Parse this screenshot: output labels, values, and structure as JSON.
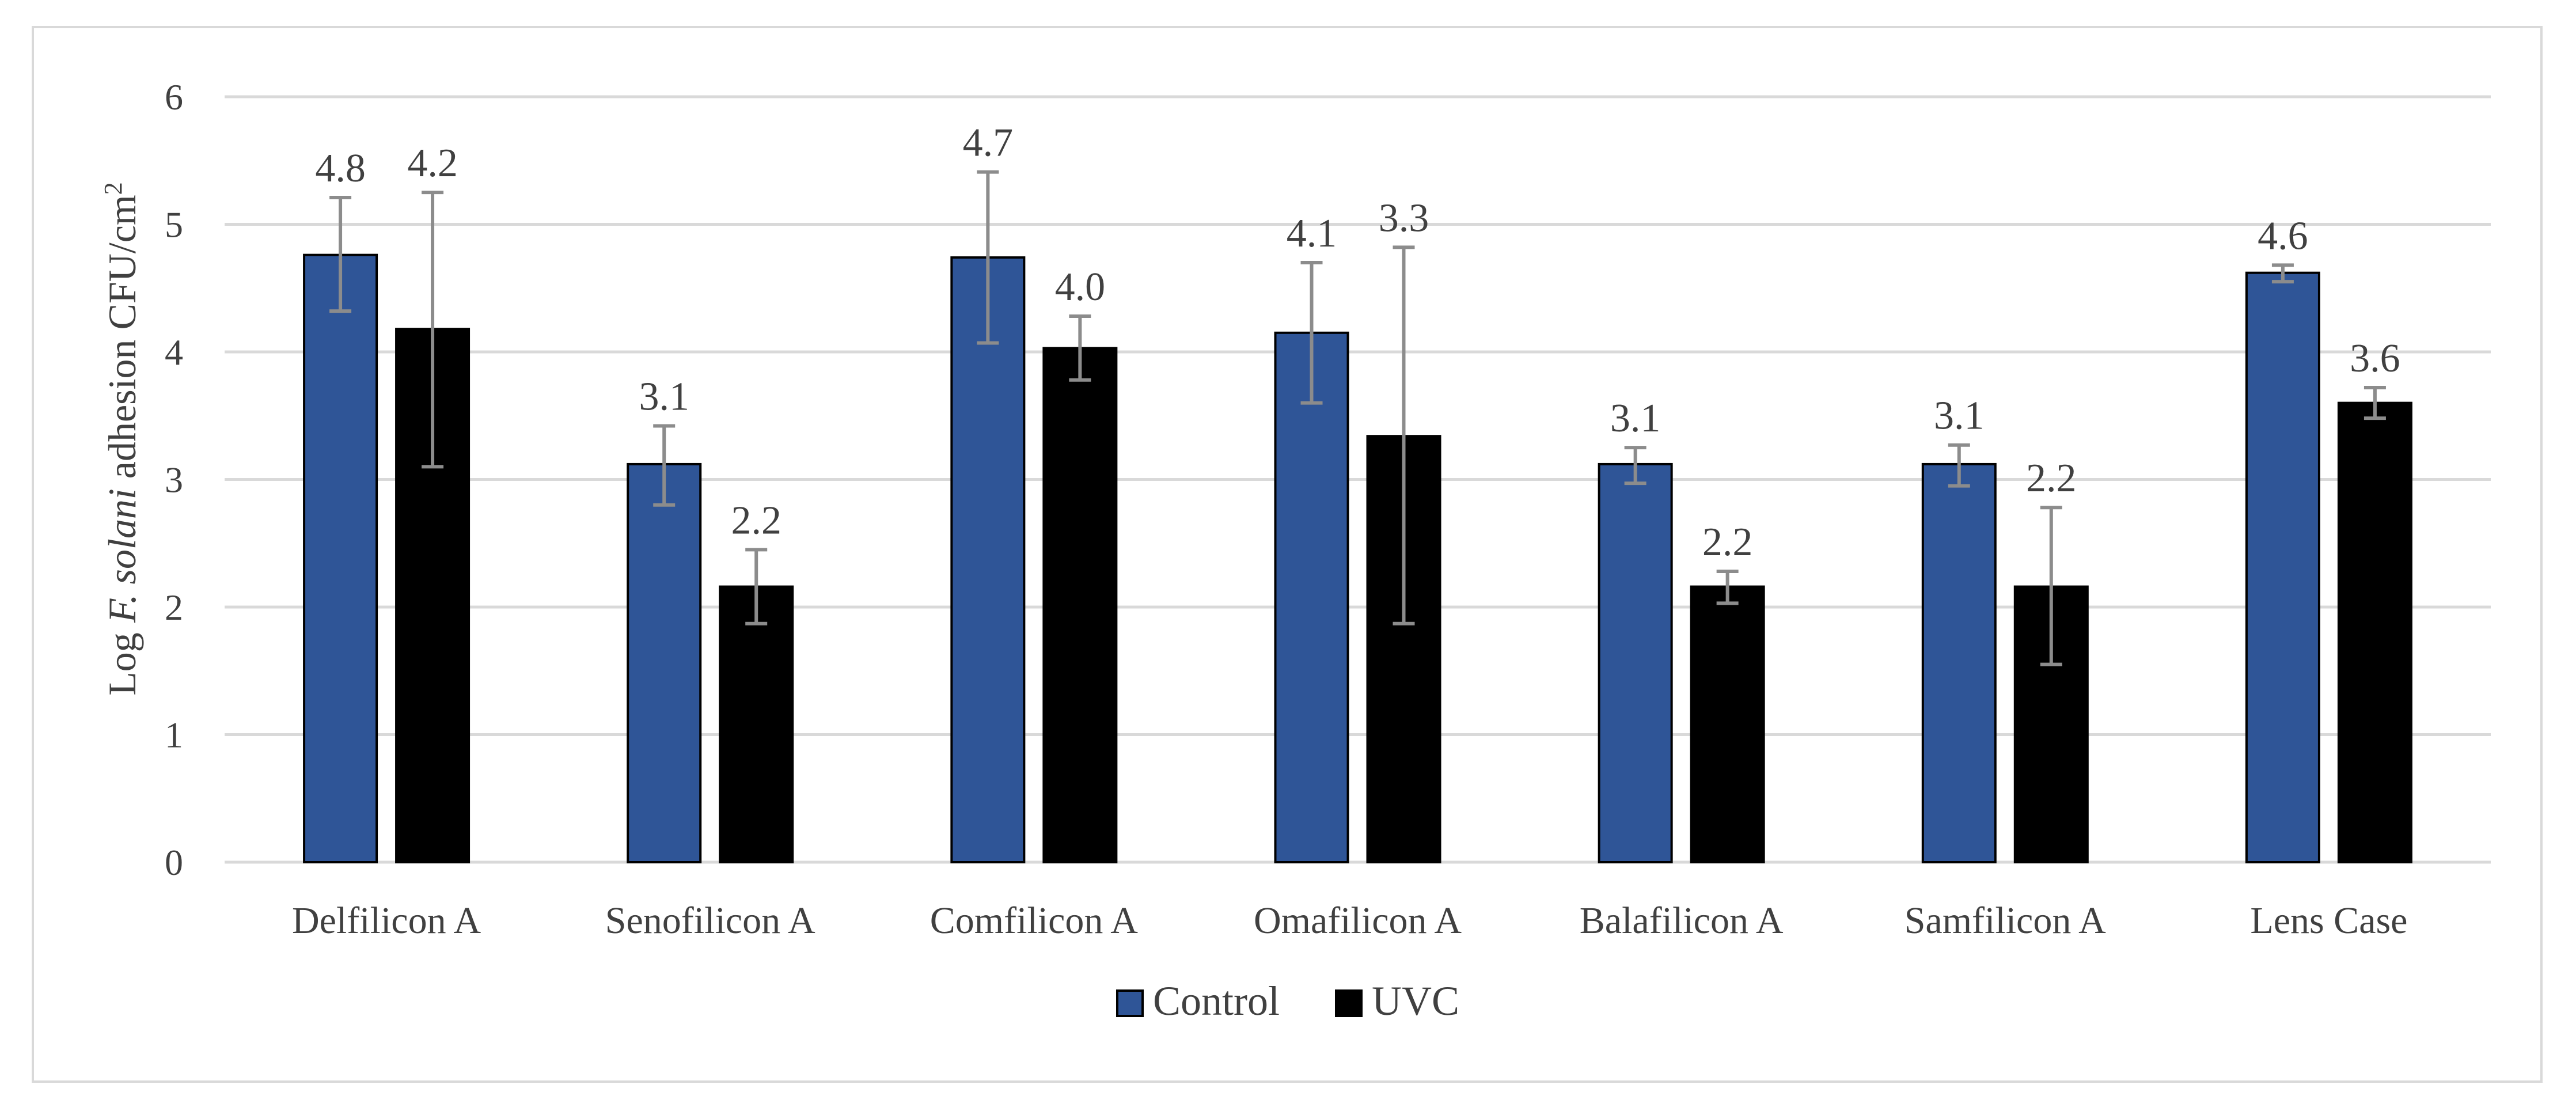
{
  "chart_data": {
    "type": "bar",
    "title": "",
    "xlabel": "",
    "ylabel": {
      "prefix": "Log ",
      "species": "F. solani",
      "suffix": " adhesion CFU/cm",
      "superscript": "2"
    },
    "ylim": [
      0,
      6
    ],
    "yticks": [
      0,
      1,
      2,
      3,
      4,
      5,
      6
    ],
    "grid": true,
    "legend_position": "bottom",
    "categories": [
      "Delfilicon A",
      "Senofilicon A",
      "Comfilicon A",
      "Omafilicon A",
      "Balafilicon A",
      "Samfilicon A",
      "Lens Case"
    ],
    "series": [
      {
        "name": "Control",
        "color": "#2f5597",
        "values": [
          4.76,
          3.12,
          4.74,
          4.15,
          3.12,
          3.12,
          4.62
        ],
        "labels": [
          "4.8",
          "3.1",
          "4.7",
          "4.1",
          "3.1",
          "3.1",
          "4.6"
        ],
        "error_low": [
          4.32,
          2.8,
          4.07,
          3.6,
          2.97,
          2.95,
          4.55
        ],
        "error_high": [
          5.21,
          3.42,
          5.41,
          4.7,
          3.25,
          3.27,
          4.68
        ]
      },
      {
        "name": "UVC",
        "color": "#000000",
        "values": [
          4.18,
          2.16,
          4.03,
          3.34,
          2.16,
          2.16,
          3.6
        ],
        "labels": [
          "4.2",
          "2.2",
          "4.0",
          "3.3",
          "2.2",
          "2.2",
          "3.6"
        ],
        "error_low": [
          3.1,
          1.87,
          3.78,
          1.87,
          2.03,
          1.55,
          3.48
        ],
        "error_high": [
          5.25,
          2.45,
          4.28,
          4.82,
          2.28,
          2.78,
          3.72
        ]
      }
    ]
  }
}
